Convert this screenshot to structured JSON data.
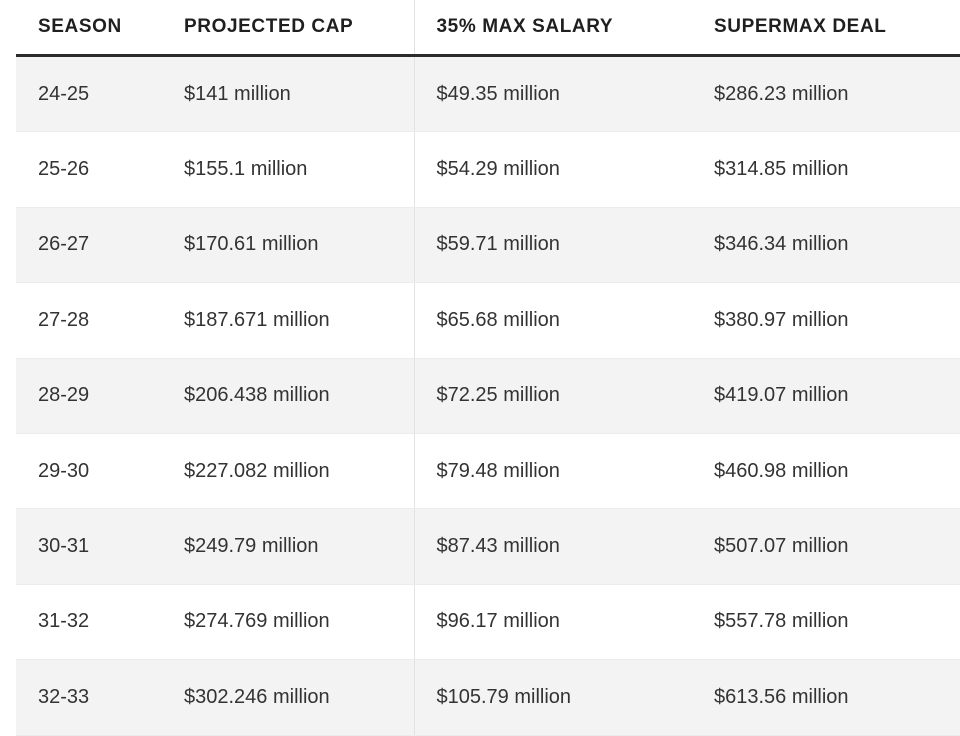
{
  "table": {
    "headers": [
      "SEASON",
      "PROJECTED CAP",
      "35% MAX SALARY",
      "SUPERMAX DEAL"
    ],
    "rows": [
      [
        "24-25",
        "$141 million",
        "$49.35 million",
        "$286.23 million"
      ],
      [
        "25-26",
        "$155.1 million",
        "$54.29 million",
        "$314.85 million"
      ],
      [
        "26-27",
        "$170.61 million",
        "$59.71 million",
        "$346.34 million"
      ],
      [
        "27-28",
        "$187.671 million",
        "$65.68 million",
        "$380.97 million"
      ],
      [
        "28-29",
        "$206.438 million",
        "$72.25 million",
        "$419.07 million"
      ],
      [
        "29-30",
        "$227.082 million",
        "$79.48 million",
        "$460.98 million"
      ],
      [
        "30-31",
        "$249.79 million",
        "$87.43 million",
        "$507.07 million"
      ],
      [
        "31-32",
        "$274.769 million",
        "$96.17 million",
        "$557.78 million"
      ],
      [
        "32-33",
        "$302.246 million",
        "$105.79 million",
        "$613.56 million"
      ]
    ]
  }
}
